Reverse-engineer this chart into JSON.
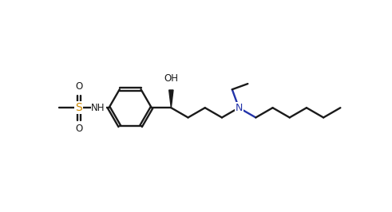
{
  "bg_color": "#ffffff",
  "bond_color": "#1a1a1a",
  "orange_color": "#cc8800",
  "blue_color": "#2233aa",
  "lw": 1.7,
  "figsize": [
    4.91,
    2.66
  ],
  "dpi": 100,
  "xlim": [
    -0.8,
    10.2
  ],
  "ylim": [
    0.3,
    5.3
  ]
}
